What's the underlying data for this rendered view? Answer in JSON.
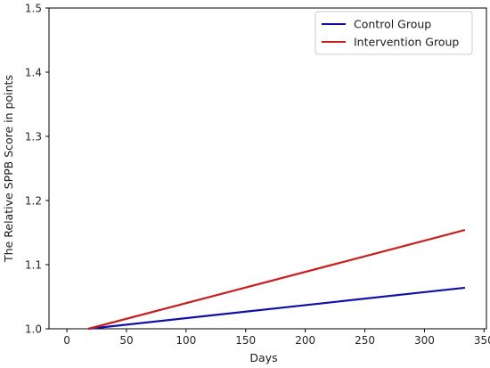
{
  "chart_data": {
    "type": "line",
    "title": "",
    "xlabel": "Days",
    "ylabel": "The Relative SPPB Score in points",
    "xlim": [
      -15,
      352
    ],
    "ylim": [
      1.0,
      1.5
    ],
    "xticks": [
      0,
      50,
      100,
      150,
      200,
      250,
      300,
      350
    ],
    "yticks": [
      1.0,
      1.1,
      1.2,
      1.3,
      1.4,
      1.5
    ],
    "xtick_labels": [
      "0",
      "50",
      "100",
      "150",
      "200",
      "250",
      "300",
      "350"
    ],
    "ytick_labels": [
      "1.0",
      "1.1",
      "1.2",
      "1.3",
      "1.4",
      "1.5"
    ],
    "grid": false,
    "legend_position": "upper right",
    "series": [
      {
        "name": "Control Group",
        "color": "#1010a8",
        "x": [
          18,
          334
        ],
        "y": [
          1.0,
          1.064
        ]
      },
      {
        "name": "Intervention Group",
        "color": "#c81e1e",
        "x": [
          18,
          334
        ],
        "y": [
          1.0,
          1.154
        ]
      }
    ]
  }
}
